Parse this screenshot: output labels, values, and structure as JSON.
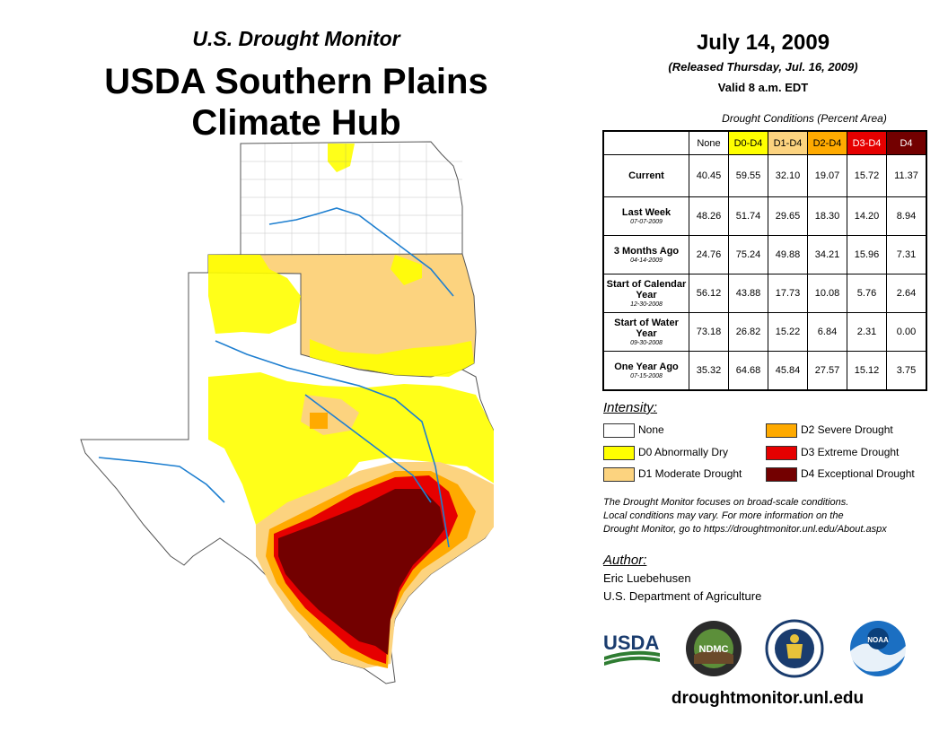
{
  "header": {
    "kicker": "U.S. Drought Monitor",
    "title_line1": "USDA Southern Plains",
    "title_line2": "Climate Hub"
  },
  "dates": {
    "map_date": "July 14, 2009",
    "released": "(Released Thursday, Jul. 16, 2009)",
    "valid": "Valid 8 a.m. EDT"
  },
  "conditions_table": {
    "title": "Drought Conditions (Percent Area)",
    "columns": [
      "None",
      "D0-D4",
      "D1-D4",
      "D2-D4",
      "D3-D4",
      "D4"
    ],
    "column_colors": [
      "#ffffff",
      "#ffff00",
      "#fcd37f",
      "#ffaa00",
      "#e60000",
      "#730000"
    ],
    "rows": [
      {
        "label": "Current",
        "sublabel": "",
        "values": [
          "40.45",
          "59.55",
          "32.10",
          "19.07",
          "15.72",
          "11.37"
        ]
      },
      {
        "label": "Last Week",
        "sublabel": "07-07-2009",
        "values": [
          "48.26",
          "51.74",
          "29.65",
          "18.30",
          "14.20",
          "8.94"
        ]
      },
      {
        "label": "3 Months Ago",
        "sublabel": "04-14-2009",
        "values": [
          "24.76",
          "75.24",
          "49.88",
          "34.21",
          "15.96",
          "7.31"
        ]
      },
      {
        "label": "Start of Calendar Year",
        "sublabel": "12-30-2008",
        "values": [
          "56.12",
          "43.88",
          "17.73",
          "10.08",
          "5.76",
          "2.64"
        ]
      },
      {
        "label": "Start of Water Year",
        "sublabel": "09-30-2008",
        "values": [
          "73.18",
          "26.82",
          "15.22",
          "6.84",
          "2.31",
          "0.00"
        ]
      },
      {
        "label": "One Year Ago",
        "sublabel": "07-15-2008",
        "values": [
          "35.32",
          "64.68",
          "45.84",
          "27.57",
          "15.12",
          "3.75"
        ]
      }
    ]
  },
  "legend": {
    "title": "Intensity:",
    "items": [
      {
        "label": "None",
        "color": "#ffffff"
      },
      {
        "label": "D0 Abnormally Dry",
        "color": "#ffff00"
      },
      {
        "label": "D1 Moderate Drought",
        "color": "#fcd37f"
      },
      {
        "label": "D2 Severe Drought",
        "color": "#ffaa00"
      },
      {
        "label": "D3 Extreme Drought",
        "color": "#e60000"
      },
      {
        "label": "D4 Exceptional Drought",
        "color": "#730000"
      }
    ]
  },
  "note": {
    "line1": "The Drought Monitor focuses on broad-scale conditions.",
    "line2": "Local conditions may vary. For more information on the",
    "line3": "Drought Monitor, go to https://droughtmonitor.unl.edu/About.aspx"
  },
  "author": {
    "title": "Author:",
    "name": "Eric Luebehusen",
    "org": "U.S. Department of Agriculture"
  },
  "logos": {
    "usda": "USDA",
    "ndmc": "NDMC",
    "noaa": "NOAA"
  },
  "website": "droughtmonitor.unl.edu"
}
